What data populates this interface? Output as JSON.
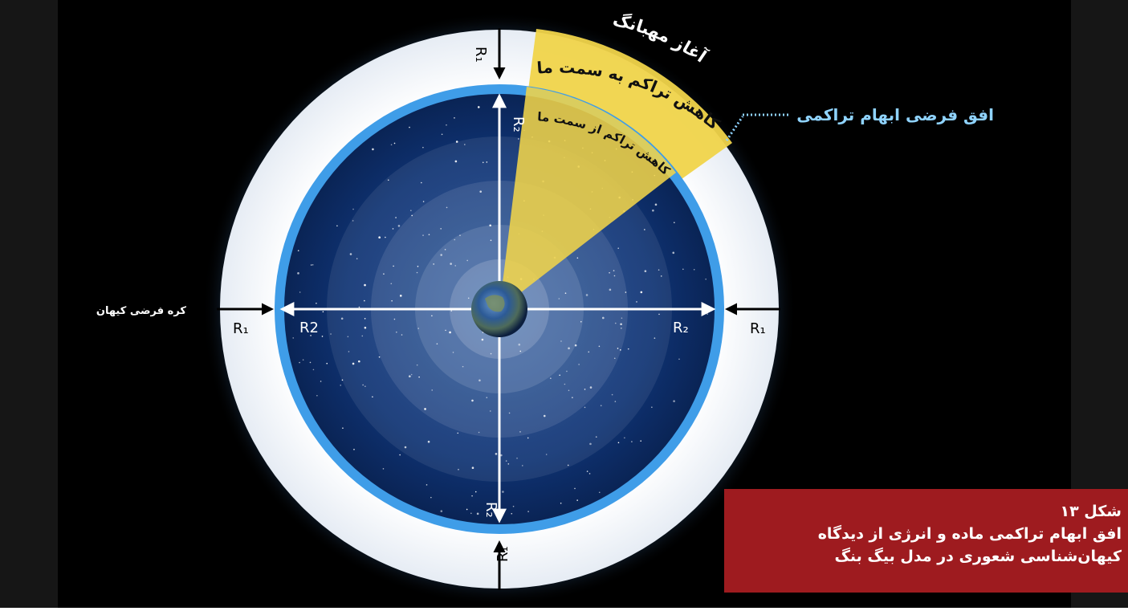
{
  "diagram": {
    "label_big_bang_start": "آغاز مهبانگ",
    "label_density_decrease_toward": "کاهش تراکم به سمت ما",
    "label_density_decrease_from": "کاهش تراکم از سمت ما",
    "label_horizon": "افق فرضی ابهام تراکمی",
    "label_sphere": "کره فرضی کیهان",
    "r1": "R₁",
    "r2": "R₂",
    "r2_left": "R2"
  },
  "caption": {
    "line1": "شکل ۱۳",
    "line2": "افق ابهام تراکمی ماده و انرژی از دیدگاه",
    "line3": "کیهان‌شناسی شعوری در مدل بیگ بنگ"
  },
  "colors": {
    "background": "#000000",
    "outer_ring": "#f4f6f9",
    "inner_ring": "#3f9de8",
    "space": "#0d2d66",
    "highlight": "#f0d44a",
    "horizon_label": "#8fd3ff",
    "caption_bg": "#9e1b1f"
  }
}
